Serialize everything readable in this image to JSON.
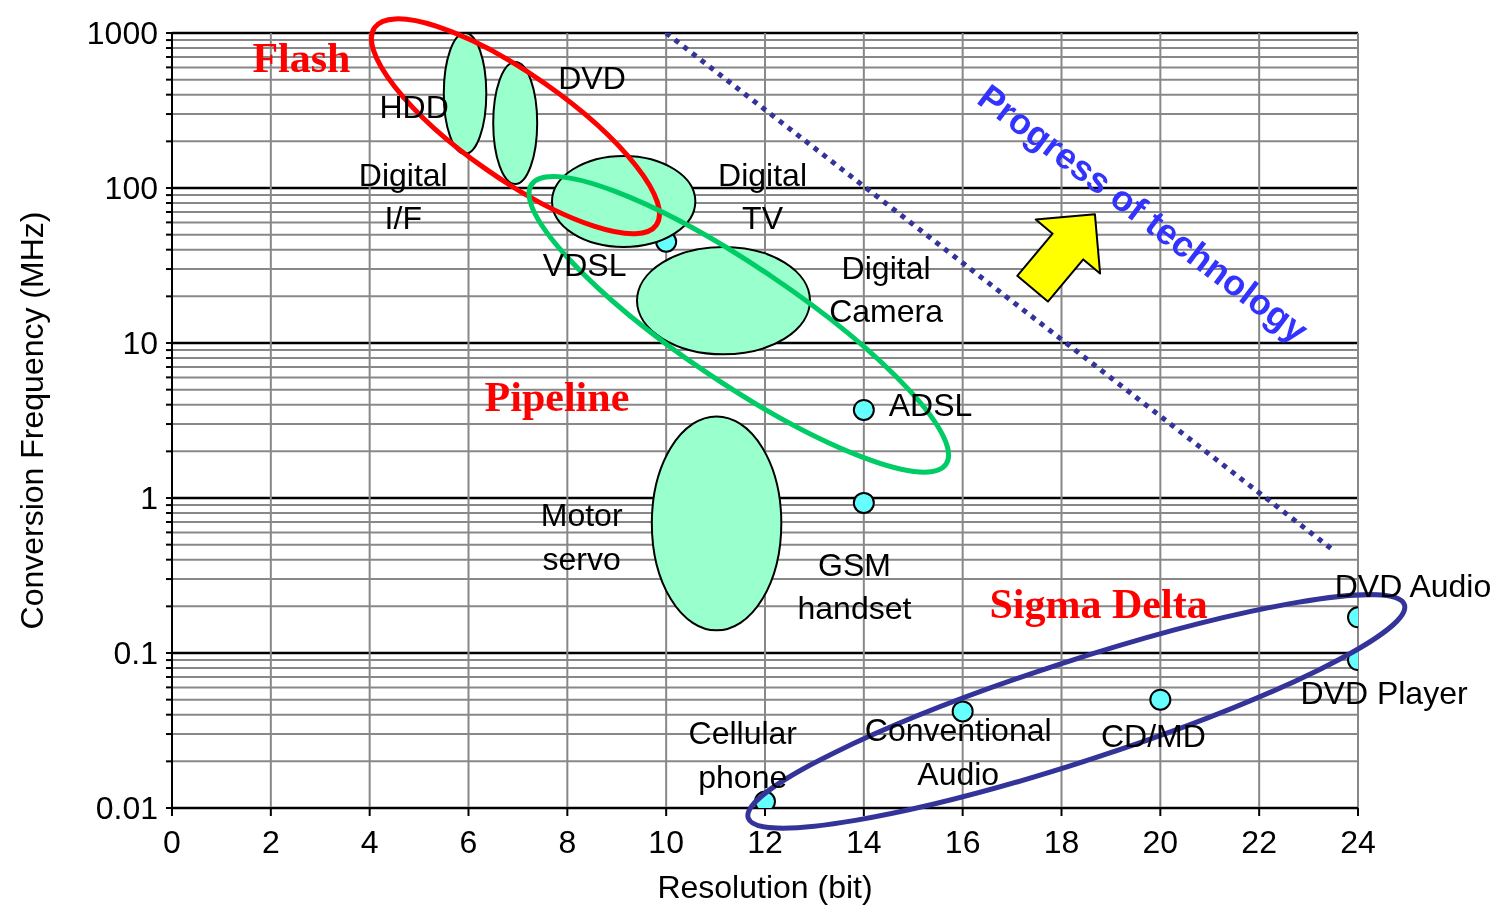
{
  "chart_data": {
    "type": "scatter",
    "xlabel": "Resolution (bit)",
    "ylabel": "Conversion Frequency (MHz)",
    "xlim": [
      0,
      24
    ],
    "xticks": [
      0,
      2,
      4,
      6,
      8,
      10,
      12,
      14,
      16,
      18,
      20,
      22,
      24
    ],
    "ylim": [
      0.01,
      1000
    ],
    "log": "y",
    "yticks": [
      0.01,
      {
        "value": 0.02,
        "label": null
      },
      {
        "value": 0.03,
        "label": null
      },
      {
        "value": 0.04,
        "label": null
      },
      {
        "value": 0.05,
        "label": null
      },
      {
        "value": 0.06,
        "label": null
      },
      {
        "value": 0.07,
        "label": null
      },
      {
        "value": 0.08,
        "label": null
      },
      {
        "value": 0.09,
        "label": null
      },
      0.1,
      {
        "value": 0.2,
        "label": null
      },
      {
        "value": 0.3,
        "label": null
      },
      {
        "value": 0.4,
        "label": null
      },
      {
        "value": 0.5,
        "label": null
      },
      {
        "value": 0.6,
        "label": null
      },
      {
        "value": 0.7,
        "label": null
      },
      {
        "value": 0.8,
        "label": null
      },
      {
        "value": 0.9,
        "label": null
      },
      1,
      {
        "value": 2,
        "label": null
      },
      {
        "value": 3,
        "label": null
      },
      {
        "value": 4,
        "label": null
      },
      {
        "value": 5,
        "label": null
      },
      {
        "value": 6,
        "label": null
      },
      {
        "value": 7,
        "label": null
      },
      {
        "value": 8,
        "label": null
      },
      {
        "value": 9,
        "label": null
      },
      10,
      {
        "value": 20,
        "label": null
      },
      {
        "value": 30,
        "label": null
      },
      {
        "value": 40,
        "label": null
      },
      {
        "value": 50,
        "label": null
      },
      {
        "value": 60,
        "label": null
      },
      {
        "value": 70,
        "label": null
      },
      {
        "value": 80,
        "label": null
      },
      {
        "value": 90,
        "label": null
      },
      100,
      {
        "value": 200,
        "label": null
      },
      {
        "value": 300,
        "label": null
      },
      {
        "value": 400,
        "label": null
      },
      {
        "value": 500,
        "label": null
      },
      {
        "value": 600,
        "label": null
      },
      {
        "value": 700,
        "label": null
      },
      {
        "value": 800,
        "label": null
      },
      {
        "value": 900,
        "label": null
      },
      1000
    ],
    "grid": true,
    "marker": "circle",
    "series": [
      {
        "color": "#66ffff",
        "x": [
          10,
          14,
          14,
          24,
          24,
          20,
          16,
          12
        ],
        "values": [
          45,
          3.7,
          0.93,
          0.17,
          0.09,
          0.05,
          0.042,
          0.011
        ]
      },
      {
        "type": "line",
        "color": "#333399",
        "line_style": "dotted",
        "marker": "none",
        "x": [
          10,
          23.5
        ],
        "values": [
          1000,
          0.46
        ]
      }
    ],
    "annotations": [
      "Flash",
      "Pipeline",
      "Sigma Delta",
      "Progress of technology",
      "HDD",
      "DVD",
      "Digital\nI/F",
      "Digital\nTV",
      "VDSL",
      "Digital\nCamera",
      "ADSL",
      "Motor\nservo",
      "GSM\nhandset",
      "DVD Audio",
      "DVD Player",
      "CD/MD",
      "Conventional\nAudio",
      "Cellular\nphone"
    ]
  }
}
